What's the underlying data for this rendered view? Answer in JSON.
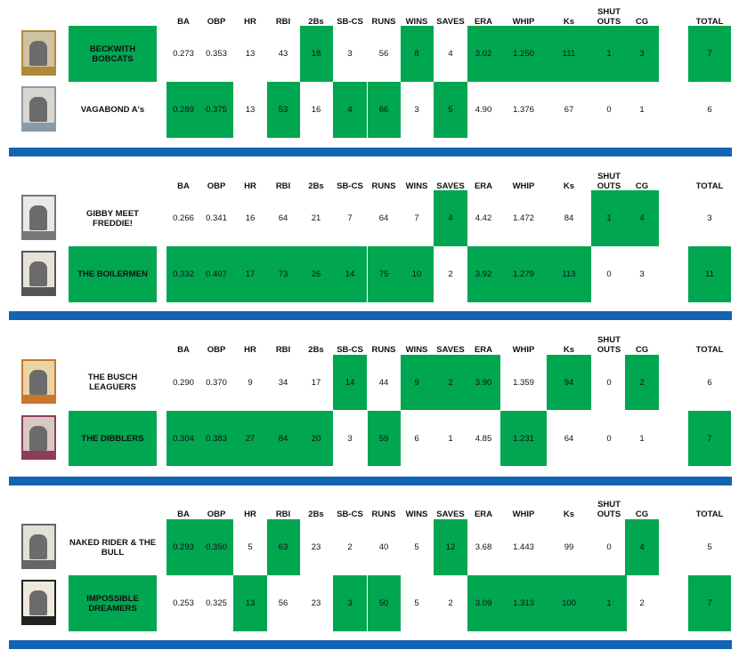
{
  "columns": [
    {
      "key": "ba",
      "label": "BA"
    },
    {
      "key": "obp",
      "label": "OBP"
    },
    {
      "key": "hr",
      "label": "HR"
    },
    {
      "key": "rbi",
      "label": "RBI"
    },
    {
      "key": "2bs",
      "label": "2Bs"
    },
    {
      "key": "sbcs",
      "label": "SB-CS"
    },
    {
      "key": "runs",
      "label": "RUNS"
    },
    {
      "key": "wins",
      "label": "WINS"
    },
    {
      "key": "saves",
      "label": "SAVES"
    },
    {
      "key": "era",
      "label": "ERA"
    },
    {
      "key": "whip",
      "label": "WHIP"
    },
    {
      "key": "ks",
      "label": "Ks"
    },
    {
      "key": "shutouts",
      "label": "SHUT\nOUTS"
    },
    {
      "key": "cg",
      "label": "CG"
    }
  ],
  "total_label": "TOTAL",
  "matchups": [
    {
      "teams": [
        {
          "name": "BECKWITH\nBOBCATS",
          "name_win": true,
          "stats": [
            "0.273",
            "0.353",
            "13",
            "43",
            "18",
            "3",
            "56",
            "8",
            "4",
            "3.02",
            "1.250",
            "111",
            "1",
            "3"
          ],
          "wins": [
            false,
            false,
            false,
            false,
            true,
            false,
            false,
            true,
            false,
            true,
            true,
            true,
            true,
            true
          ],
          "total": "7",
          "total_win": true
        },
        {
          "name": "VAGABOND A's",
          "name_win": false,
          "stats": [
            "0.289",
            "0.375",
            "13",
            "53",
            "16",
            "4",
            "66",
            "3",
            "5",
            "4.90",
            "1.376",
            "67",
            "0",
            "1"
          ],
          "wins": [
            true,
            true,
            false,
            true,
            false,
            true,
            true,
            false,
            true,
            false,
            false,
            false,
            false,
            false
          ],
          "total": "6",
          "total_win": false
        }
      ]
    },
    {
      "teams": [
        {
          "name": "GIBBY MEET\nFREDDIE!",
          "name_win": false,
          "stats": [
            "0.266",
            "0.341",
            "16",
            "64",
            "21",
            "7",
            "64",
            "7",
            "4",
            "4.42",
            "1.472",
            "84",
            "1",
            "4"
          ],
          "wins": [
            false,
            false,
            false,
            false,
            false,
            false,
            false,
            false,
            true,
            false,
            false,
            false,
            true,
            true
          ],
          "total": "3",
          "total_win": false
        },
        {
          "name": "THE BOILERMEN",
          "name_win": true,
          "stats": [
            "0.332",
            "0.407",
            "17",
            "73",
            "26",
            "14",
            "75",
            "10",
            "2",
            "3.92",
            "1.279",
            "113",
            "0",
            "3"
          ],
          "wins": [
            true,
            true,
            true,
            true,
            true,
            true,
            true,
            true,
            false,
            true,
            true,
            true,
            false,
            false
          ],
          "total": "11",
          "total_win": true
        }
      ]
    },
    {
      "teams": [
        {
          "name": "THE BUSCH\nLEAGUERS",
          "name_win": false,
          "stats": [
            "0.290",
            "0.370",
            "9",
            "34",
            "17",
            "14",
            "44",
            "9",
            "2",
            "3.90",
            "1.359",
            "94",
            "0",
            "2"
          ],
          "wins": [
            false,
            false,
            false,
            false,
            false,
            true,
            false,
            true,
            true,
            true,
            false,
            true,
            false,
            true
          ],
          "total": "6",
          "total_win": false
        },
        {
          "name": "THE DIBBLERS",
          "name_win": true,
          "stats": [
            "0.304",
            "0.383",
            "27",
            "84",
            "20",
            "3",
            "59",
            "6",
            "1",
            "4.85",
            "1.231",
            "64",
            "0",
            "1"
          ],
          "wins": [
            true,
            true,
            true,
            true,
            true,
            false,
            true,
            false,
            false,
            false,
            true,
            false,
            false,
            false
          ],
          "total": "7",
          "total_win": true
        }
      ]
    },
    {
      "teams": [
        {
          "name": "NAKED RIDER & THE\nBULL",
          "name_win": false,
          "stats": [
            "0.293",
            "0.350",
            "5",
            "63",
            "23",
            "2",
            "40",
            "5",
            "12",
            "3.68",
            "1.443",
            "99",
            "0",
            "4"
          ],
          "wins": [
            true,
            true,
            false,
            true,
            false,
            false,
            false,
            false,
            true,
            false,
            false,
            false,
            false,
            true
          ],
          "total": "5",
          "total_win": false
        },
        {
          "name": "IMPOSSIBLE\nDREAMERS",
          "name_win": true,
          "stats": [
            "0.253",
            "0.325",
            "13",
            "56",
            "23",
            "3",
            "50",
            "5",
            "2",
            "3.09",
            "1.313",
            "100",
            "1",
            "2"
          ],
          "wins": [
            false,
            false,
            true,
            false,
            false,
            true,
            true,
            false,
            false,
            true,
            true,
            true,
            true,
            false
          ],
          "total": "7",
          "total_win": true
        }
      ]
    }
  ]
}
